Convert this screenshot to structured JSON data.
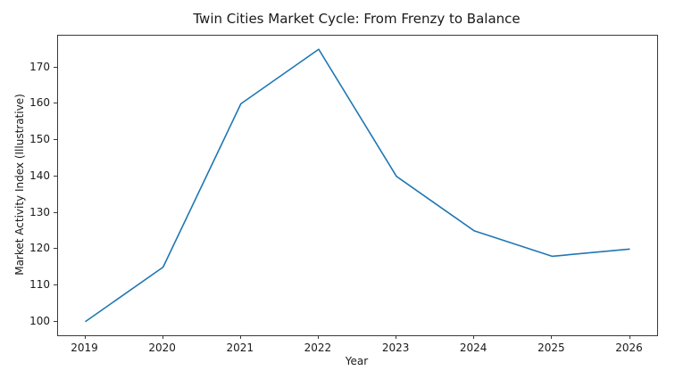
{
  "chart_data": {
    "type": "line",
    "title": "Twin Cities Market Cycle: From Frenzy to Balance",
    "xlabel": "Year",
    "ylabel": "Market Activity Index (Illustrative)",
    "x": [
      2019,
      2020,
      2021,
      2022,
      2023,
      2024,
      2025,
      2026
    ],
    "values": [
      100,
      115,
      160,
      175,
      140,
      125,
      118,
      120
    ],
    "xticks": [
      2019,
      2020,
      2021,
      2022,
      2023,
      2024,
      2025,
      2026
    ],
    "yticks": [
      100,
      110,
      120,
      130,
      140,
      150,
      160,
      170
    ],
    "xlim": [
      2018.65,
      2026.35
    ],
    "ylim": [
      96.25,
      178.75
    ],
    "line_color": "#1f77b4",
    "spine_color": "#3a3a3a",
    "grid": false,
    "legend_position": "none"
  }
}
